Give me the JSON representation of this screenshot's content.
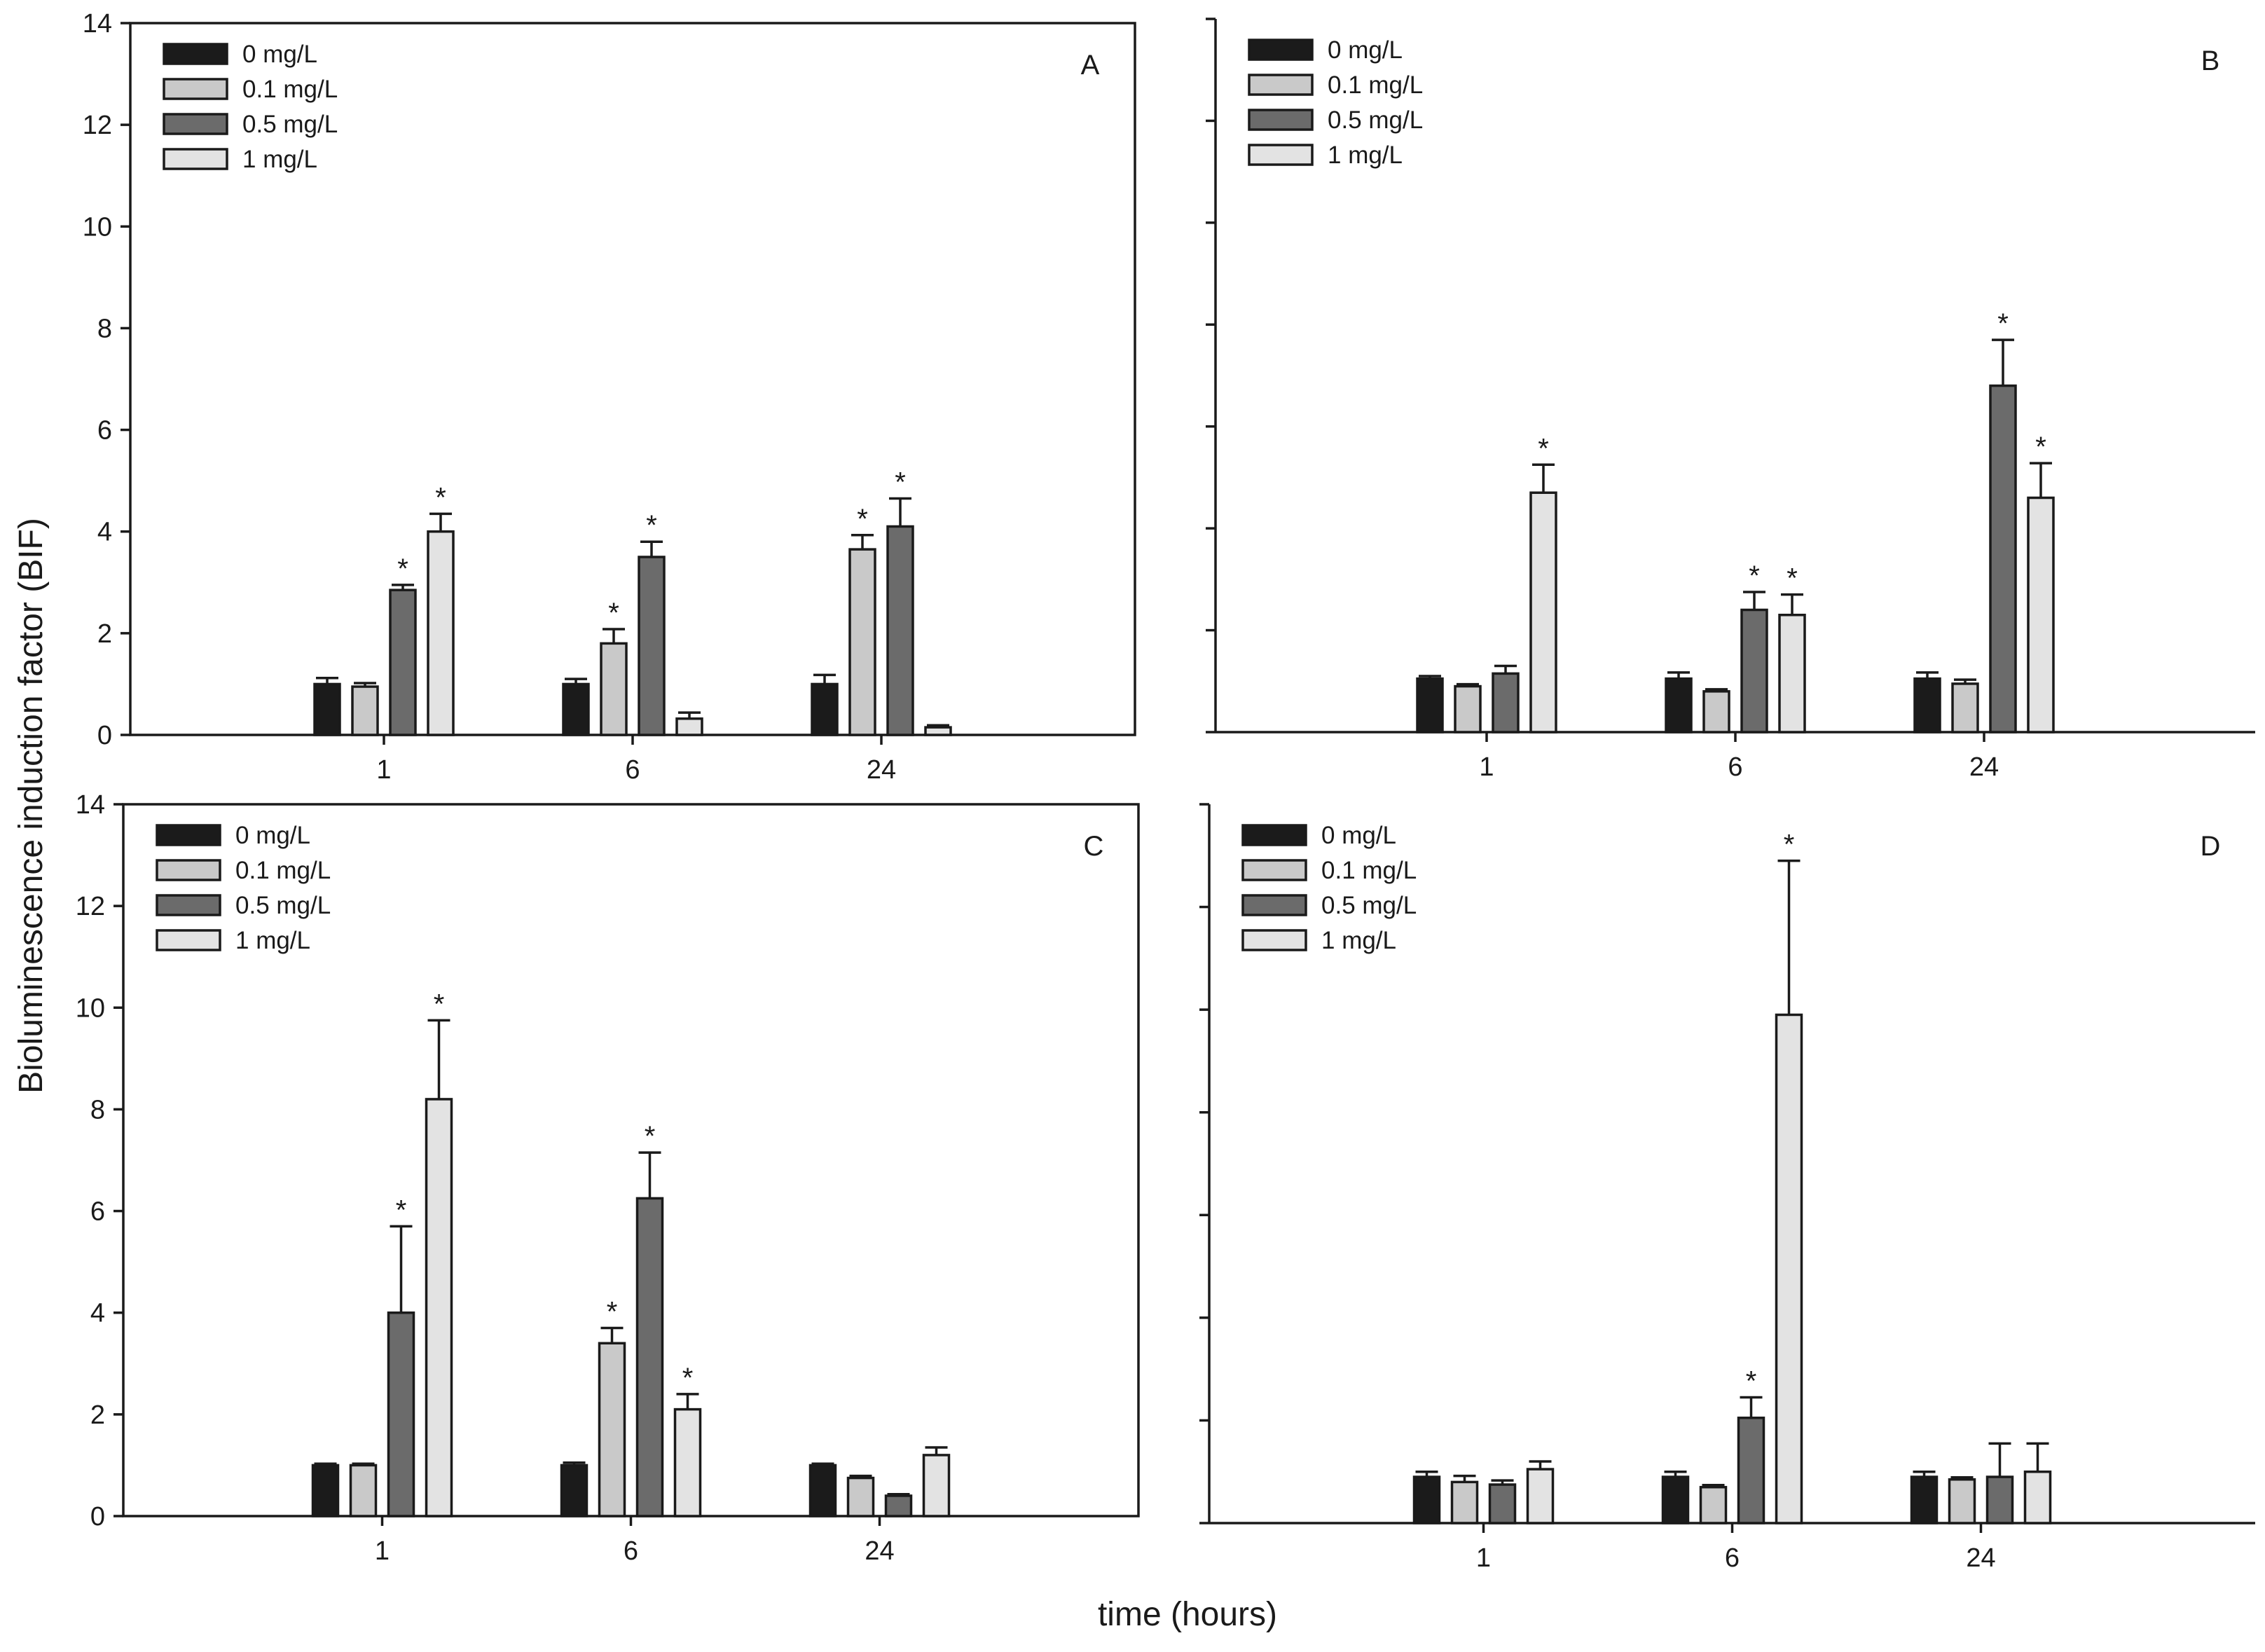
{
  "figure": {
    "ylabel": "Bioluminescence induction factor (BIF)",
    "xlabel": "time (hours)"
  },
  "colors": {
    "0 mg/L": "#1b1b1b",
    "0.1 mg/L": "#c9c9c9",
    "0.5 mg/L": "#6b6b6b",
    "1 mg/L": "#e3e3e3"
  },
  "chart_data": [
    {
      "type": "bar",
      "panel": "A",
      "categories": [
        "1",
        "6",
        "24"
      ],
      "ylim": [
        0,
        14
      ],
      "yticks": [
        0,
        2,
        4,
        6,
        8,
        10,
        12,
        14
      ],
      "show_ytick_labels": true,
      "legend": [
        "0 mg/L",
        "0.1 mg/L",
        "0.5 mg/L",
        "1 mg/L"
      ],
      "series": [
        {
          "name": "0 mg/L",
          "values": [
            1.0,
            1.0,
            1.0
          ],
          "errors": [
            0.12,
            0.1,
            0.18
          ],
          "significant": [
            false,
            false,
            false
          ]
        },
        {
          "name": "0.1 mg/L",
          "values": [
            0.95,
            1.8,
            3.65
          ],
          "errors": [
            0.07,
            0.28,
            0.28
          ],
          "significant": [
            false,
            true,
            true
          ]
        },
        {
          "name": "0.5 mg/L",
          "values": [
            2.85,
            3.5,
            4.1
          ],
          "errors": [
            0.1,
            0.3,
            0.55
          ],
          "significant": [
            true,
            true,
            true
          ]
        },
        {
          "name": "1 mg/L",
          "values": [
            4.0,
            0.32,
            0.15
          ],
          "errors": [
            0.35,
            0.12,
            0.04
          ],
          "significant": [
            true,
            false,
            false
          ]
        }
      ]
    },
    {
      "type": "bar",
      "panel": "B",
      "categories": [
        "1",
        "6",
        "24"
      ],
      "ylim": [
        0,
        14
      ],
      "yticks": [
        0,
        2,
        4,
        6,
        8,
        10,
        12,
        14
      ],
      "show_ytick_labels": false,
      "legend": [
        "0 mg/L",
        "0.1 mg/L",
        "0.5 mg/L",
        "1 mg/L"
      ],
      "series": [
        {
          "name": "0 mg/L",
          "values": [
            1.05,
            1.05,
            1.05
          ],
          "errors": [
            0.05,
            0.12,
            0.12
          ],
          "significant": [
            false,
            false,
            false
          ]
        },
        {
          "name": "0.1 mg/L",
          "values": [
            0.9,
            0.8,
            0.95
          ],
          "errors": [
            0.04,
            0.04,
            0.08
          ],
          "significant": [
            false,
            false,
            false
          ]
        },
        {
          "name": "0.5 mg/L",
          "values": [
            1.15,
            2.4,
            6.8
          ],
          "errors": [
            0.15,
            0.35,
            0.9
          ],
          "significant": [
            false,
            true,
            true
          ]
        },
        {
          "name": "1 mg/L",
          "values": [
            4.7,
            2.3,
            4.6
          ],
          "errors": [
            0.55,
            0.4,
            0.68
          ],
          "significant": [
            true,
            true,
            true
          ]
        }
      ]
    },
    {
      "type": "bar",
      "panel": "C",
      "categories": [
        "1",
        "6",
        "24"
      ],
      "ylim": [
        0,
        14
      ],
      "yticks": [
        0,
        2,
        4,
        6,
        8,
        10,
        12,
        14
      ],
      "show_ytick_labels": true,
      "legend": [
        "0 mg/L",
        "0.1 mg/L",
        "0.5 mg/L",
        "1 mg/L"
      ],
      "series": [
        {
          "name": "0 mg/L",
          "values": [
            1.0,
            1.0,
            1.0
          ],
          "errors": [
            0.03,
            0.05,
            0.03
          ],
          "significant": [
            false,
            false,
            false
          ]
        },
        {
          "name": "0.1 mg/L",
          "values": [
            1.0,
            3.4,
            0.75
          ],
          "errors": [
            0.03,
            0.3,
            0.04
          ],
          "significant": [
            false,
            true,
            false
          ]
        },
        {
          "name": "0.5 mg/L",
          "values": [
            4.0,
            6.25,
            0.4
          ],
          "errors": [
            1.7,
            0.9,
            0.03
          ],
          "significant": [
            true,
            true,
            false
          ]
        },
        {
          "name": "1 mg/L",
          "values": [
            8.2,
            2.1,
            1.2
          ],
          "errors": [
            1.55,
            0.3,
            0.15
          ],
          "significant": [
            true,
            true,
            false
          ]
        }
      ]
    },
    {
      "type": "bar",
      "panel": "D",
      "categories": [
        "1",
        "6",
        "24"
      ],
      "ylim": [
        0,
        14
      ],
      "yticks": [
        0,
        2,
        4,
        6,
        8,
        10,
        12,
        14
      ],
      "show_ytick_labels": false,
      "legend": [
        "0 mg/L",
        "0.1 mg/L",
        "0.5 mg/L",
        "1 mg/L"
      ],
      "series": [
        {
          "name": "0 mg/L",
          "values": [
            0.9,
            0.9,
            0.9
          ],
          "errors": [
            0.1,
            0.1,
            0.1
          ],
          "significant": [
            false,
            false,
            false
          ]
        },
        {
          "name": "0.1 mg/L",
          "values": [
            0.8,
            0.7,
            0.85
          ],
          "errors": [
            0.12,
            0.04,
            0.04
          ],
          "significant": [
            false,
            false,
            false
          ]
        },
        {
          "name": "0.5 mg/L",
          "values": [
            0.75,
            2.05,
            0.9
          ],
          "errors": [
            0.08,
            0.4,
            0.65
          ],
          "significant": [
            false,
            true,
            false
          ]
        },
        {
          "name": "1 mg/L",
          "values": [
            1.05,
            9.9,
            1.0
          ],
          "errors": [
            0.15,
            3.0,
            0.55
          ],
          "significant": [
            false,
            true,
            false
          ]
        }
      ]
    }
  ]
}
